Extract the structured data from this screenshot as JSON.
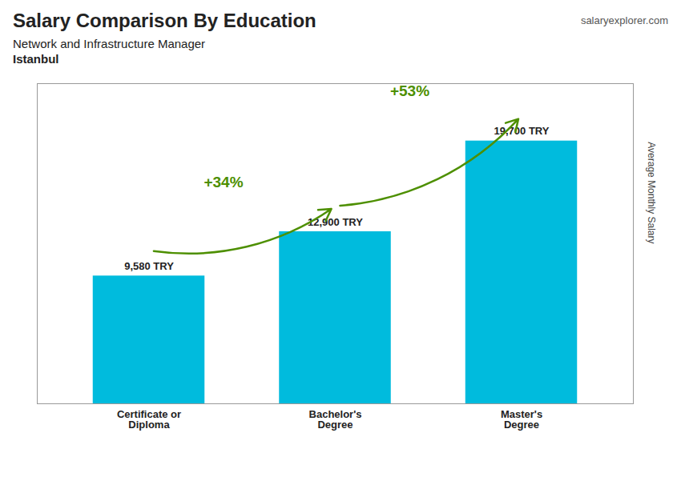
{
  "chart_data": {
    "type": "bar",
    "title": "Salary Comparison By Education",
    "subtitle": [
      "Network and Infrastructure Manager",
      "Istanbul"
    ],
    "caption": "salaryexplorer.com",
    "ylabel": "Average Monthly Salary",
    "categories": [
      "Certificate or\nDiploma",
      "Bachelor's\nDegree",
      "Master's\nDegree"
    ],
    "values": [
      9580,
      12900,
      19700
    ],
    "value_labels": [
      "9,580 TRY",
      "12,900 TRY",
      "19,700 TRY"
    ],
    "data_labels": true,
    "annotations": [
      "+34%",
      "+53%"
    ],
    "color": "#00bbdd",
    "ylim": [
      0,
      24000
    ],
    "yticks": [],
    "tick_labels": "x",
    "grid": false
  }
}
